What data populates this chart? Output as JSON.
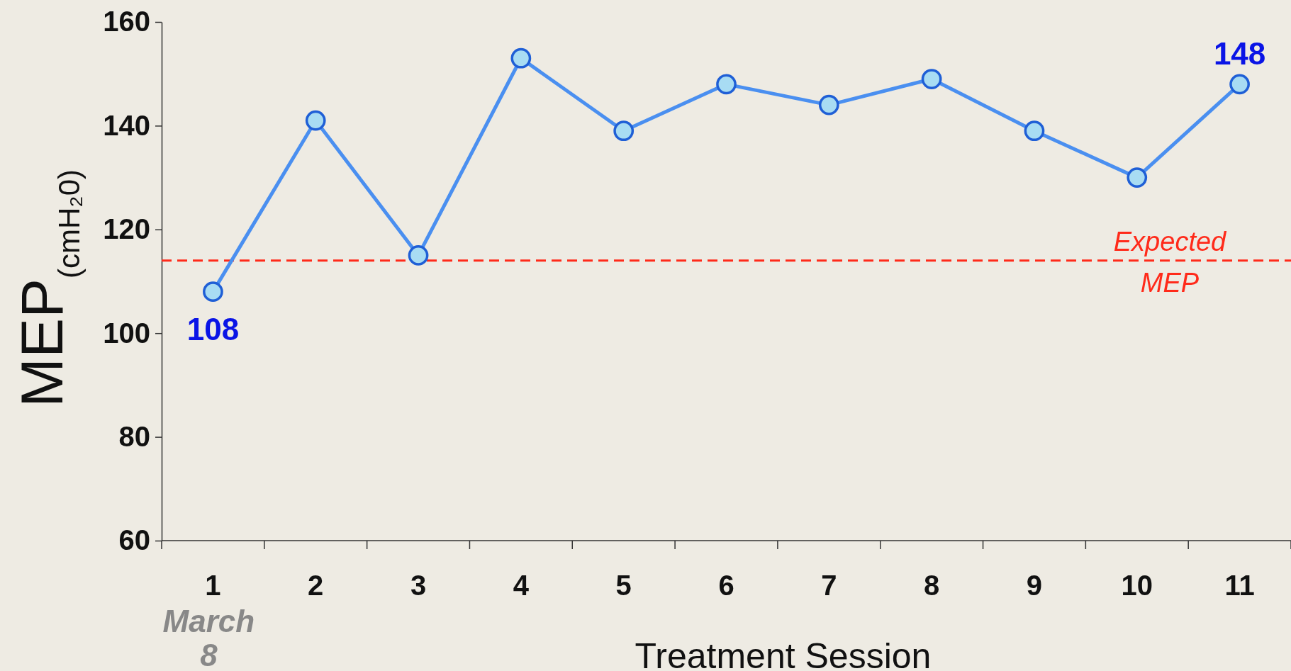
{
  "chart_data": {
    "type": "line",
    "xlabel": "Treatment Session",
    "ylabel": "MEP$_{(cmH₂0)}$",
    "categories": [
      "1",
      "2",
      "3",
      "4",
      "5",
      "6",
      "7",
      "8",
      "9",
      "10",
      "11"
    ],
    "series": [
      {
        "color": "#4a8ff0",
        "values": [
          108,
          141,
          115,
          153,
          139,
          148,
          144,
          149,
          139,
          130,
          148
        ],
        "value_labels": [
          "108",
          null,
          null,
          null,
          null,
          null,
          null,
          null,
          null,
          null,
          "148"
        ]
      }
    ],
    "ylim": [
      60,
      160
    ],
    "yticks": [
      60,
      80,
      100,
      120,
      140,
      160
    ],
    "ref_lines": [
      {
        "axis": "y",
        "value": 114,
        "label": "Expected MEP",
        "color": "#ff2a1a",
        "line_style": "dashed"
      }
    ],
    "annotations": [
      "March 8"
    ],
    "marker": "circle",
    "line_style": "solid",
    "grid": false
  }
}
